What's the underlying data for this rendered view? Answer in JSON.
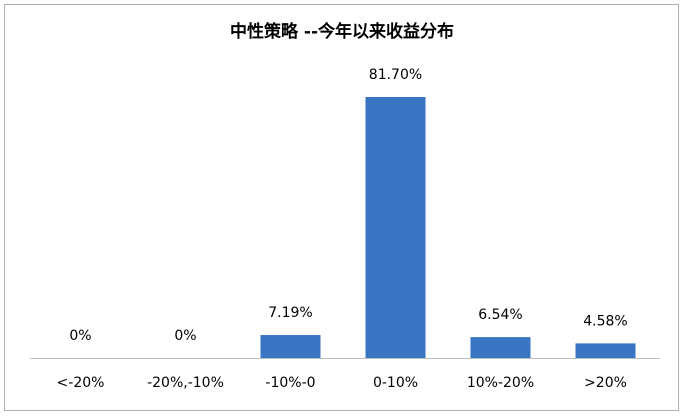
{
  "chart_data": {
    "type": "bar",
    "title": "中性策略 --今年以来收益分布",
    "categories": [
      "<-20%",
      "-20%,-10%",
      "-10%-0",
      "0-10%",
      "10%-20%",
      ">20%"
    ],
    "values": [
      0,
      0,
      7.19,
      81.7,
      6.54,
      4.58
    ],
    "value_labels": [
      "0%",
      "0%",
      "7.19%",
      "81.70%",
      "6.54%",
      "4.58%"
    ],
    "color": "#3a75c4",
    "grid": false
  }
}
